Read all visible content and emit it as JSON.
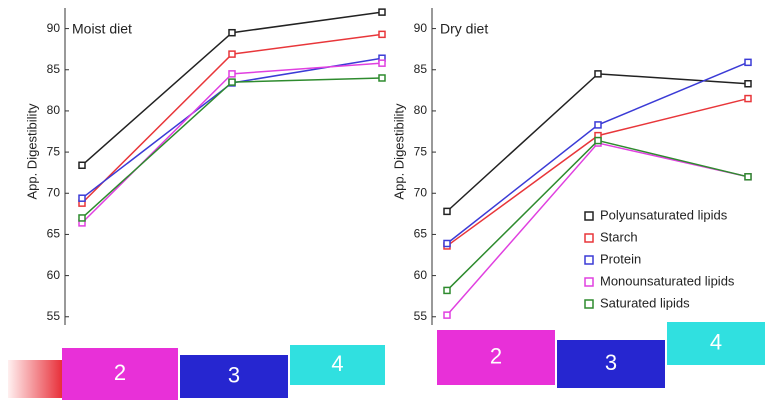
{
  "chart_data": [
    {
      "type": "line",
      "title": "Moist diet",
      "y_label": "App. Digestibility",
      "categories": [
        "2",
        "3",
        "4"
      ],
      "ylim": [
        54,
        92.5
      ],
      "yticks": [
        55,
        60,
        65,
        70,
        75,
        80,
        85,
        90
      ],
      "legend": false,
      "series": [
        {
          "name": "Polyunsaturated lipids",
          "color": "#222222",
          "values": [
            73.4,
            89.5,
            92.0
          ]
        },
        {
          "name": "Starch",
          "color": "#e8363a",
          "values": [
            68.8,
            86.9,
            89.3
          ]
        },
        {
          "name": "Protein",
          "color": "#3b3bd6",
          "values": [
            69.4,
            83.4,
            86.4
          ]
        },
        {
          "name": "Monounsaturated lipids",
          "color": "#e040e0",
          "values": [
            66.4,
            84.5,
            85.8
          ]
        },
        {
          "name": "Saturated lipids",
          "color": "#2e8b2e",
          "values": [
            67.0,
            83.5,
            84.0
          ]
        }
      ]
    },
    {
      "type": "line",
      "title": "Dry diet",
      "y_label": "App. Digestibility",
      "categories": [
        "2",
        "3",
        "4"
      ],
      "ylim": [
        54,
        92.5
      ],
      "yticks": [
        55,
        60,
        65,
        70,
        75,
        80,
        85,
        90
      ],
      "legend": "lower right",
      "series": [
        {
          "name": "Polyunsaturated lipids",
          "color": "#222222",
          "values": [
            67.8,
            84.5,
            83.3
          ]
        },
        {
          "name": "Starch",
          "color": "#e8363a",
          "values": [
            63.6,
            77.0,
            81.5
          ]
        },
        {
          "name": "Protein",
          "color": "#3b3bd6",
          "values": [
            63.9,
            78.3,
            85.9
          ]
        },
        {
          "name": "Monounsaturated lipids",
          "color": "#e040e0",
          "values": [
            55.2,
            76.1,
            72.0
          ]
        },
        {
          "name": "Saturated lipids",
          "color": "#2e8b2e",
          "values": [
            58.2,
            76.4,
            72.0
          ]
        }
      ]
    }
  ]
}
